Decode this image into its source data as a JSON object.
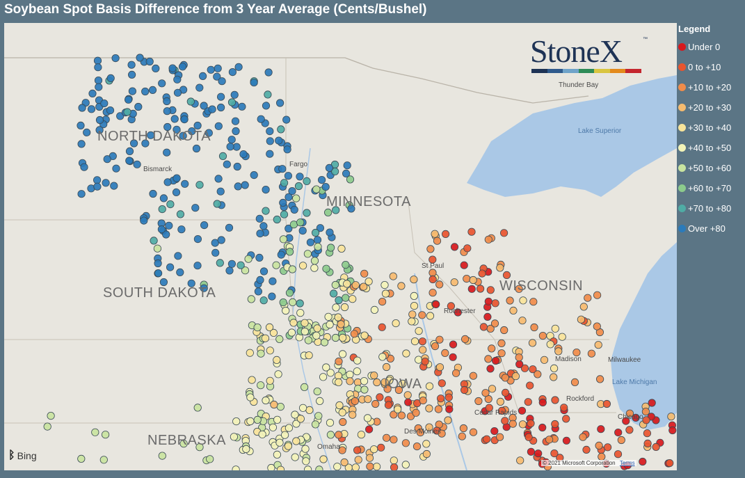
{
  "title": "Soybean Spot Basis Difference from 3 Year Average (Cents/Bushel)",
  "logo": {
    "text": "StoneX",
    "tm": "™",
    "bar_colors": [
      "#1e3355",
      "#2f5a8c",
      "#6fa3c9",
      "#2e8b57",
      "#d9c540",
      "#e38a1d",
      "#c4262e"
    ]
  },
  "legend": {
    "title": "Legend",
    "items": [
      {
        "label": "Under 0",
        "color": "#d7191c"
      },
      {
        "label": "0 to +10",
        "color": "#e8552f"
      },
      {
        "label": "+10 to +20",
        "color": "#f08c4a"
      },
      {
        "label": "+20 to +30",
        "color": "#f6bb6f"
      },
      {
        "label": "+30 to +40",
        "color": "#f8e49a"
      },
      {
        "label": "+40 to +50",
        "color": "#f3f3b8"
      },
      {
        "label": "+50 to +60",
        "color": "#c9e4a0"
      },
      {
        "label": "+60 to +70",
        "color": "#8ccb8c"
      },
      {
        "label": "+70 to +80",
        "color": "#4faca5"
      },
      {
        "label": "Over +80",
        "color": "#2b7bba"
      }
    ]
  },
  "map": {
    "states": [
      "NORTH DAKOTA",
      "SOUTH DAKOTA",
      "MINNESOTA",
      "WISCONSIN",
      "IOWA",
      "NEBRASKA"
    ],
    "cities": [
      "Bismarck",
      "Fargo",
      "St Paul",
      "Rochester",
      "Madison",
      "Milwaukee",
      "Rockford",
      "Chicago",
      "Cedar Rapids",
      "Omaha",
      "Des Moines",
      "Thunder Bay"
    ],
    "water": [
      "Lake Superior",
      "Lake Michigan"
    ]
  },
  "attribution": {
    "bing": "Bing",
    "copyright": "© 2021 Microsoft Corporation",
    "terms": "Terms"
  }
}
